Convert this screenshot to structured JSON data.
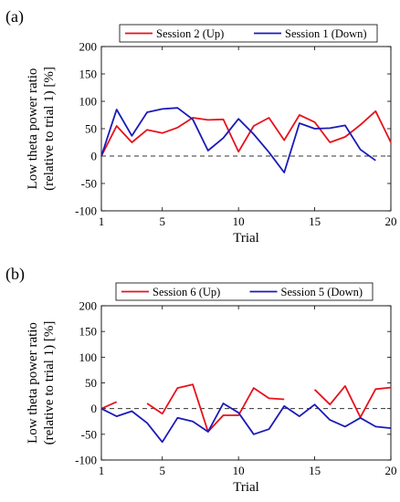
{
  "chart_data": [
    {
      "panel_label": "(a)",
      "type": "line",
      "xlabel": "Trial",
      "ylabel_line1": "Low theta power ratio",
      "ylabel_line2": "(relative to trial 1) [%]",
      "xlim": [
        1,
        20
      ],
      "ylim": [
        -100,
        200
      ],
      "xticks": [
        1,
        5,
        10,
        15,
        20
      ],
      "yticks": [
        -100,
        -50,
        0,
        50,
        100,
        150,
        200
      ],
      "zero_line": "dashed",
      "legend_position": "top",
      "series": [
        {
          "name": "Session 2 (Up)",
          "color": "#e8111b",
          "x": [
            1,
            2,
            3,
            4,
            5,
            6,
            7,
            8,
            9,
            10,
            11,
            12,
            13,
            14,
            15,
            16,
            17,
            18,
            19,
            20
          ],
          "y": [
            0,
            55,
            25,
            48,
            42,
            52,
            70,
            66,
            67,
            8,
            55,
            70,
            29,
            75,
            62,
            25,
            35,
            57,
            82,
            25
          ]
        },
        {
          "name": "Session 1 (Down)",
          "color": "#1a1ab8",
          "x": [
            1,
            2,
            3,
            4,
            5,
            6,
            7,
            8,
            9,
            10,
            11,
            12,
            13,
            14,
            15,
            16,
            17,
            18,
            19
          ],
          "y": [
            0,
            85,
            37,
            80,
            86,
            88,
            67,
            10,
            33,
            68,
            40,
            7,
            -30,
            60,
            50,
            51,
            56,
            12,
            -8
          ]
        }
      ]
    },
    {
      "panel_label": "(b)",
      "type": "line",
      "xlabel": "Trial",
      "ylabel_line1": "Low theta power ratio",
      "ylabel_line2": "(relative to trial 1) [%]",
      "xlim": [
        1,
        20
      ],
      "ylim": [
        -100,
        200
      ],
      "xticks": [
        1,
        5,
        10,
        15,
        20
      ],
      "yticks": [
        -100,
        -50,
        0,
        50,
        100,
        150,
        200
      ],
      "zero_line": "dashed",
      "legend_position": "top",
      "series": [
        {
          "name": "Session 6 (Up)",
          "color": "#e8111b",
          "x": [
            1,
            2,
            null,
            4,
            5,
            6,
            7,
            8,
            9,
            10,
            11,
            12,
            13,
            null,
            15,
            16,
            17,
            18,
            19,
            20
          ],
          "y": [
            0,
            13,
            null,
            10,
            -10,
            40,
            47,
            -45,
            -13,
            -13,
            40,
            20,
            18,
            null,
            37,
            8,
            44,
            -17,
            38,
            41
          ]
        },
        {
          "name": "Session 5 (Down)",
          "color": "#1a1ab8",
          "x": [
            1,
            2,
            3,
            4,
            5,
            6,
            7,
            8,
            9,
            10,
            11,
            12,
            13,
            14,
            15,
            16,
            17,
            18,
            19,
            20
          ],
          "y": [
            0,
            -15,
            -5,
            -28,
            -65,
            -18,
            -25,
            -45,
            10,
            -8,
            -50,
            -40,
            5,
            -15,
            8,
            -22,
            -35,
            -18,
            -35,
            -38
          ]
        }
      ]
    }
  ]
}
